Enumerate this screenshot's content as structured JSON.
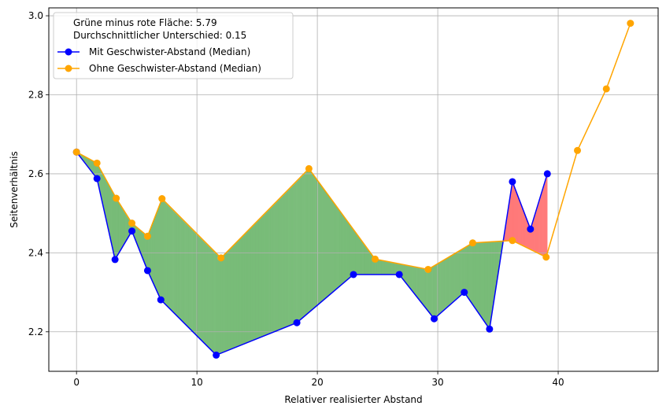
{
  "chart_data": {
    "type": "line",
    "xlabel": "Relativer realisierter Abstand",
    "ylabel": "Seitenverhältnis",
    "xlim": [
      -2.3,
      48.3
    ],
    "ylim": [
      2.1,
      3.02
    ],
    "xticks": [
      0,
      10,
      20,
      30,
      40
    ],
    "yticks": [
      2.2,
      2.4,
      2.6,
      2.8,
      3.0
    ],
    "xtick_labels": [
      "0",
      "10",
      "20",
      "30",
      "40"
    ],
    "ytick_labels": [
      "2.2",
      "2.4",
      "2.6",
      "2.8",
      "3.0"
    ],
    "grid": true,
    "legend_position": "top-left",
    "annotations": [
      "Grüne minus rote Fläche: 5.79",
      "Durchschnittlicher Unterschied: 0.15"
    ],
    "series": [
      {
        "name": "Mit Geschwister-Abstand (Median)",
        "color": "#0000ff",
        "x": [
          0,
          1.7,
          3.2,
          4.6,
          5.9,
          7.0,
          11.6,
          18.3,
          23.0,
          26.8,
          29.7,
          32.2,
          34.3,
          36.2,
          37.7,
          39.1
        ],
        "y": [
          2.655,
          2.588,
          2.383,
          2.455,
          2.355,
          2.281,
          2.141,
          2.223,
          2.345,
          2.345,
          2.233,
          2.3,
          2.207,
          2.58,
          2.46,
          2.6
        ]
      },
      {
        "name": "Ohne Geschwister-Abstand (Median)",
        "color": "#ffa500",
        "x": [
          0,
          1.7,
          3.3,
          4.6,
          5.9,
          7.1,
          12.0,
          19.3,
          24.8,
          29.2,
          32.9,
          36.2,
          39.0,
          41.6,
          44.0,
          46.0
        ],
        "y": [
          2.655,
          2.627,
          2.538,
          2.475,
          2.442,
          2.537,
          2.387,
          2.613,
          2.384,
          2.358,
          2.425,
          2.431,
          2.389,
          2.659,
          2.815,
          2.981
        ]
      }
    ],
    "fill_between": {
      "lower_series": "Mit Geschwister-Abstand (Median)",
      "upper_series": "Ohne Geschwister-Abstand (Median)",
      "positive_color": "#008000",
      "negative_color": "#ff0000"
    }
  }
}
